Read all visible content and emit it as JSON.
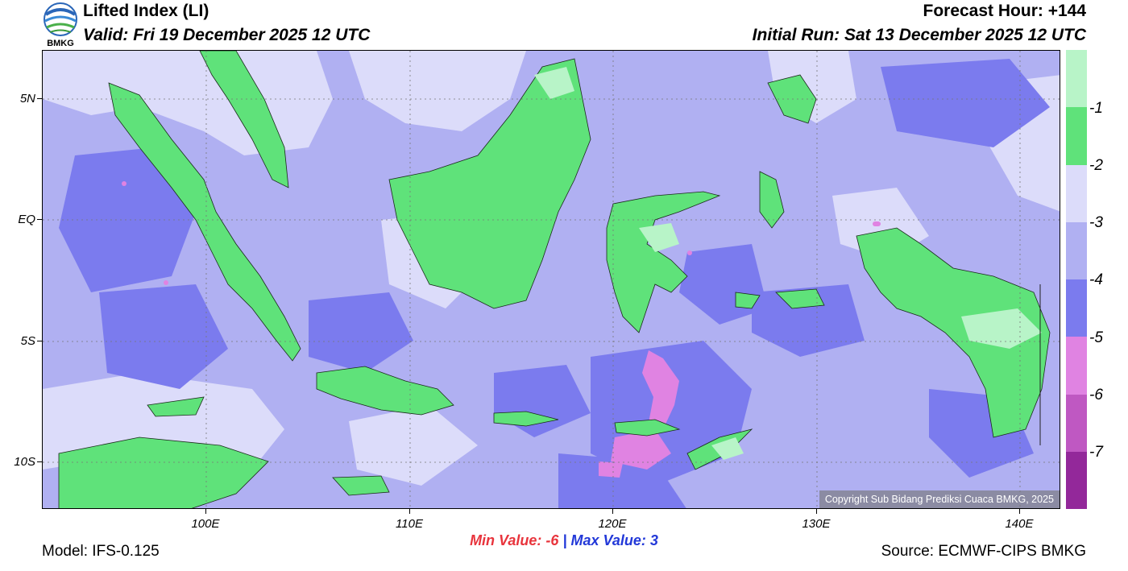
{
  "header": {
    "title": "Lifted Index (LI)",
    "valid": "Valid: Fri 19 December 2025 12 UTC",
    "forecast_hour": "Forecast Hour: +144",
    "initial_run": "Initial Run: Sat 13 December 2025 12 UTC",
    "logo_text": "BMKG"
  },
  "map": {
    "lat_labels": [
      "5N",
      "EQ",
      "5S",
      "10S"
    ],
    "lon_labels": [
      "100E",
      "110E",
      "120E",
      "130E",
      "140E"
    ],
    "copyright": "Copyright Sub Bidang Prediksi Cuaca BMKG, 2025"
  },
  "colorbar": {
    "labels": [
      "-1",
      "-2",
      "-3",
      "-4",
      "-5",
      "-6",
      "-7"
    ],
    "colors": [
      "#b8f4c8",
      "#5fe27a",
      "#dcdcfa",
      "#b0b0f2",
      "#7b7bee",
      "#e083e2",
      "#bf58c2",
      "#93289a"
    ]
  },
  "footer": {
    "min_label": "Min Value:",
    "min_value": "-6",
    "separator": "|",
    "max_label": "Max Value:",
    "max_value": "3",
    "model": "Model: IFS-0.125",
    "source": "Source: ECMWF-CIPS BMKG"
  }
}
